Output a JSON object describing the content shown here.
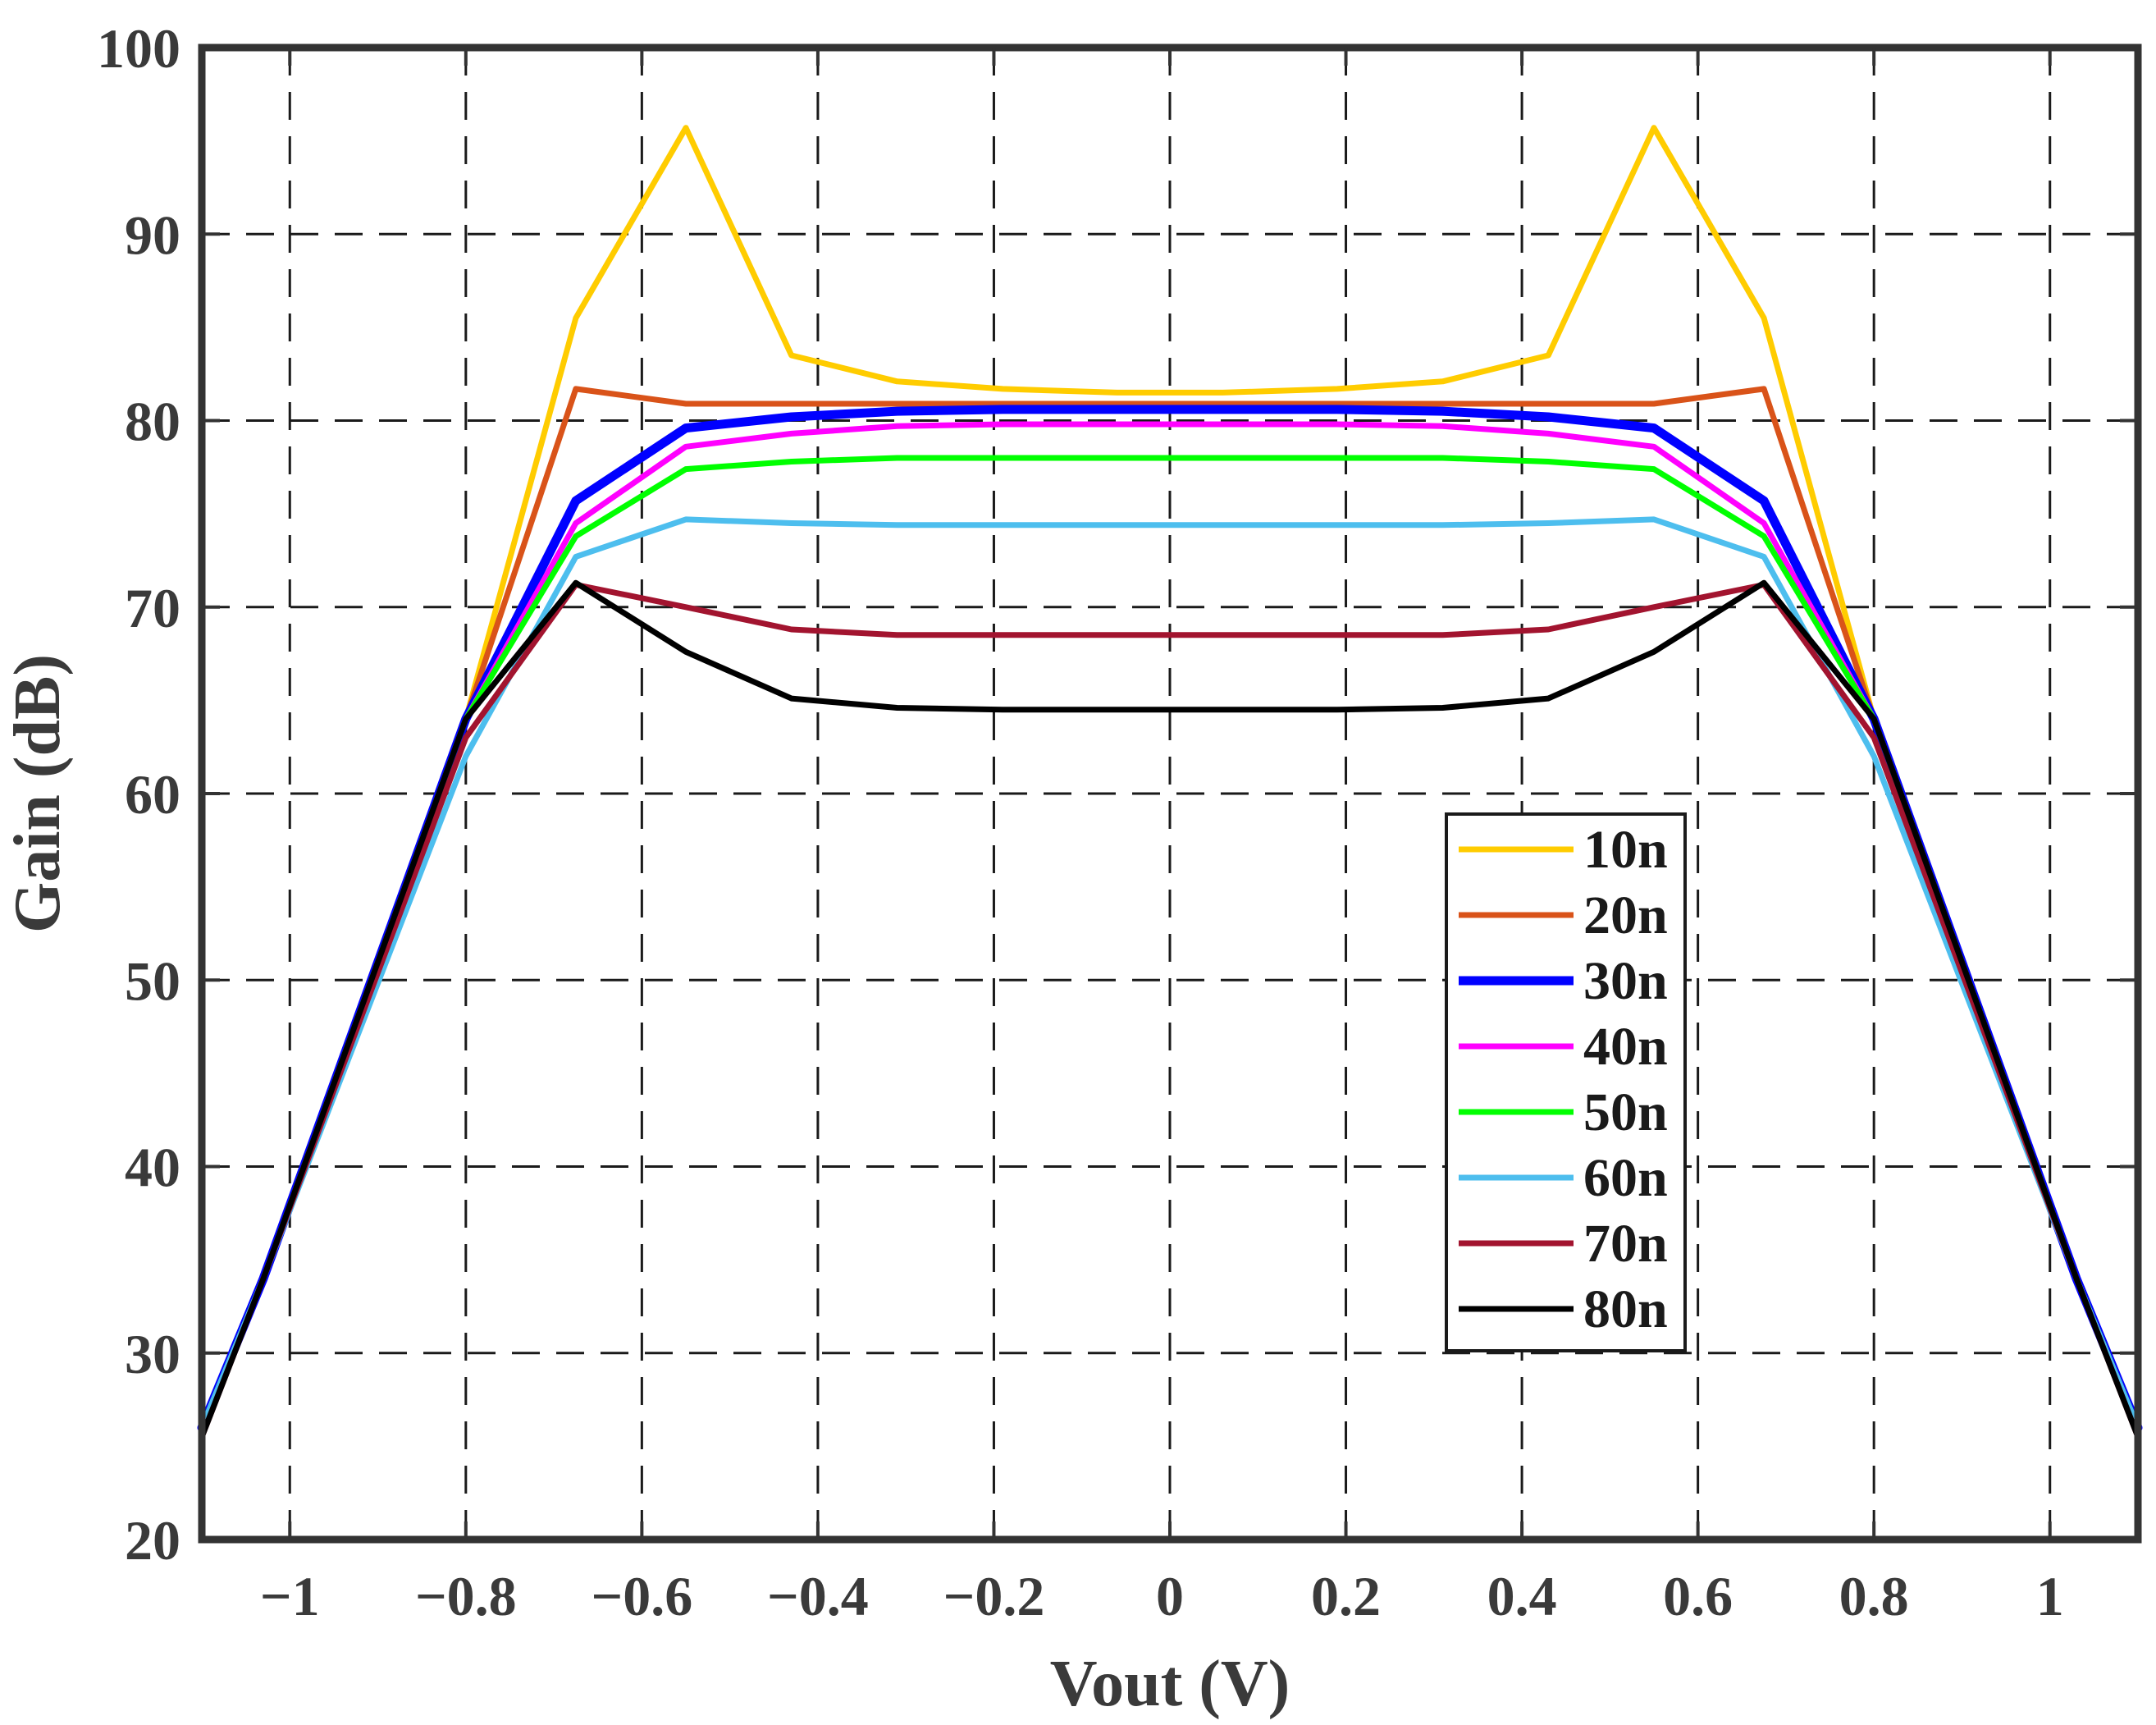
{
  "chart_data": {
    "type": "line",
    "title": "",
    "xlabel": "Vout  (V)",
    "ylabel": "Gain  (dB)",
    "xlim": [
      -1.1,
      1.1
    ],
    "ylim": [
      20,
      100
    ],
    "xticks": [
      {
        "value": -1,
        "label": "−1"
      },
      {
        "value": -0.8,
        "label": "−0.8"
      },
      {
        "value": -0.6,
        "label": "−0.6"
      },
      {
        "value": -0.4,
        "label": "−0.4"
      },
      {
        "value": -0.2,
        "label": "−0.2"
      },
      {
        "value": 0,
        "label": "0"
      },
      {
        "value": 0.2,
        "label": "0.2"
      },
      {
        "value": 0.4,
        "label": "0.4"
      },
      {
        "value": 0.6,
        "label": "0.6"
      },
      {
        "value": 0.8,
        "label": "0.8"
      },
      {
        "value": 1,
        "label": "1"
      }
    ],
    "yticks": [
      {
        "value": 20,
        "label": "20"
      },
      {
        "value": 30,
        "label": "30"
      },
      {
        "value": 40,
        "label": "40"
      },
      {
        "value": 50,
        "label": "50"
      },
      {
        "value": 60,
        "label": "60"
      },
      {
        "value": 70,
        "label": "70"
      },
      {
        "value": 80,
        "label": "80"
      },
      {
        "value": 90,
        "label": "90"
      },
      {
        "value": 100,
        "label": "100"
      }
    ],
    "grid": true,
    "legend_position": "lower-right",
    "x": [
      -1.1,
      -1.03,
      -0.8,
      -0.675,
      -0.55,
      -0.43,
      -0.31,
      -0.19,
      -0.06,
      0.06,
      0.19,
      0.31,
      0.43,
      0.55,
      0.675,
      0.8,
      1.03,
      1.1
    ],
    "series": [
      {
        "name": "10n",
        "color": "#ffcc00",
        "values": [
          26,
          34,
          64,
          85.5,
          95.7,
          83.5,
          82.1,
          81.7,
          81.5,
          81.5,
          81.7,
          82.1,
          83.5,
          95.7,
          85.5,
          64,
          34,
          26
        ]
      },
      {
        "name": "20n",
        "color": "#d95319",
        "values": [
          26,
          34,
          64,
          81.7,
          80.9,
          80.9,
          80.9,
          80.9,
          80.9,
          80.9,
          80.9,
          80.9,
          80.9,
          80.9,
          81.7,
          64,
          34,
          26
        ]
      },
      {
        "name": "30n",
        "color": "#0000ff",
        "values": [
          26,
          34,
          64,
          75.7,
          79.6,
          80.2,
          80.5,
          80.6,
          80.6,
          80.6,
          80.6,
          80.5,
          80.2,
          79.6,
          75.7,
          64,
          34,
          26
        ]
      },
      {
        "name": "40n",
        "color": "#ff00ff",
        "values": [
          26,
          34,
          64,
          74.5,
          78.6,
          79.3,
          79.7,
          79.8,
          79.8,
          79.8,
          79.8,
          79.7,
          79.3,
          78.6,
          74.5,
          64,
          34,
          26
        ]
      },
      {
        "name": "50n",
        "color": "#00ff00",
        "values": [
          26,
          34,
          64,
          73.8,
          77.4,
          77.8,
          78.0,
          78.0,
          78.0,
          78.0,
          78.0,
          78.0,
          77.8,
          77.4,
          73.8,
          64,
          34,
          26
        ]
      },
      {
        "name": "60n",
        "color": "#4dbeee",
        "values": [
          26,
          34,
          62,
          72.7,
          74.7,
          74.5,
          74.4,
          74.4,
          74.4,
          74.4,
          74.4,
          74.4,
          74.5,
          74.7,
          72.7,
          62,
          34,
          26
        ]
      },
      {
        "name": "70n",
        "color": "#a2142f",
        "values": [
          25.5,
          34,
          63,
          71.2,
          70.0,
          68.8,
          68.5,
          68.5,
          68.5,
          68.5,
          68.5,
          68.5,
          68.8,
          70.0,
          71.2,
          63,
          34,
          25.5
        ]
      },
      {
        "name": "80n",
        "color": "#000000",
        "values": [
          25.5,
          34,
          64,
          71.3,
          67.6,
          65.1,
          64.6,
          64.5,
          64.5,
          64.5,
          64.5,
          64.6,
          65.1,
          67.6,
          71.3,
          64,
          34,
          25.5
        ]
      }
    ]
  }
}
